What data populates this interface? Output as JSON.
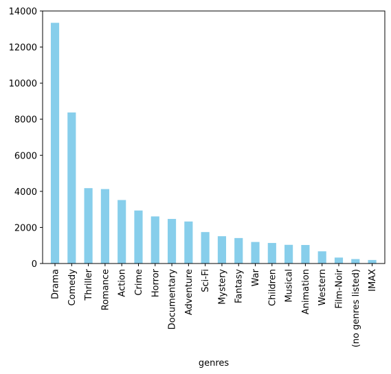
{
  "chart_data": {
    "type": "bar",
    "title": "",
    "xlabel": "genres",
    "ylabel": "",
    "bar_color": "#87ceeb",
    "grid": false,
    "ylim": [
      0,
      14000
    ],
    "yticks": [
      0,
      2000,
      4000,
      6000,
      8000,
      10000,
      12000,
      14000
    ],
    "categories": [
      "Drama",
      "Comedy",
      "Thriller",
      "Romance",
      "Action",
      "Crime",
      "Horror",
      "Documentary",
      "Adventure",
      "Sci-Fi",
      "Mystery",
      "Fantasy",
      "War",
      "Children",
      "Musical",
      "Animation",
      "Western",
      "Film-Noir",
      "(no genres listed)",
      "IMAX"
    ],
    "values": [
      13344,
      8374,
      4178,
      4127,
      3520,
      2939,
      2611,
      2471,
      2329,
      1743,
      1514,
      1412,
      1194,
      1139,
      1036,
      1027,
      676,
      330,
      246,
      196
    ]
  }
}
